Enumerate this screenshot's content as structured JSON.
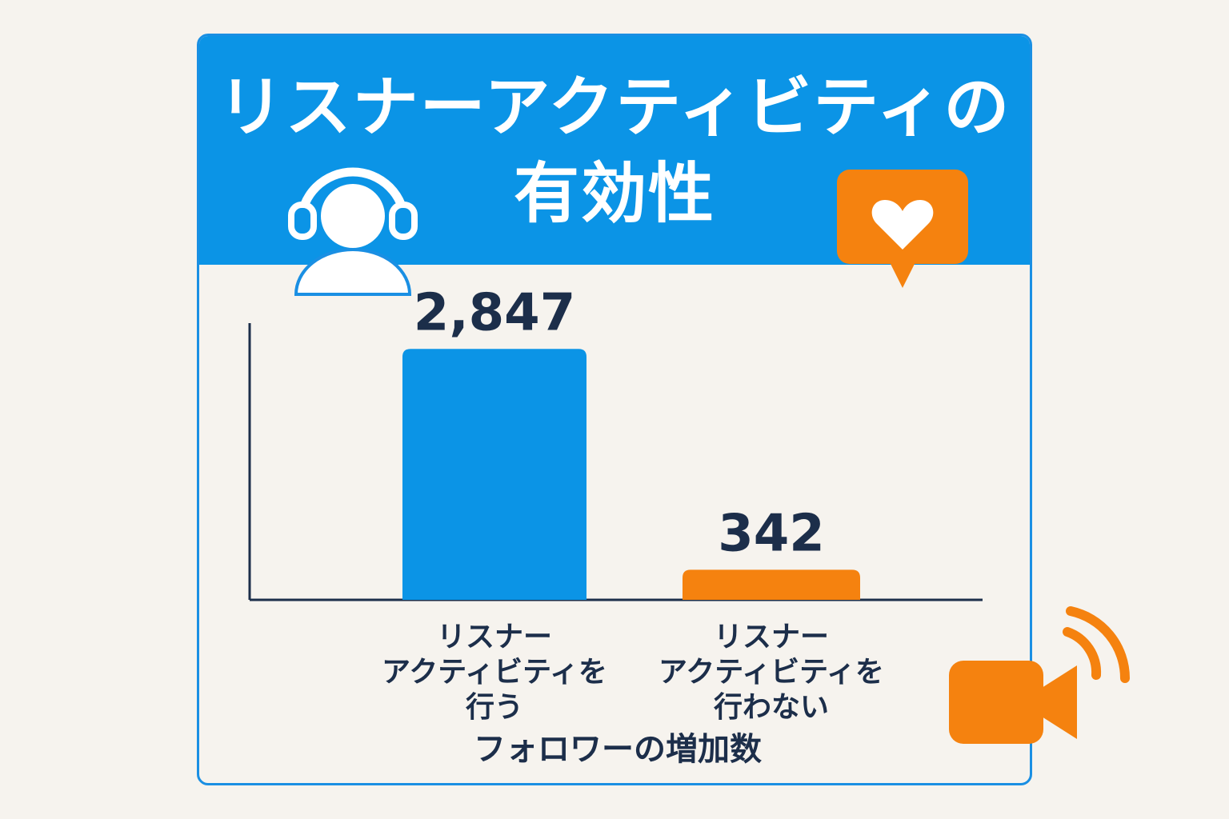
{
  "title_lines": [
    "リスナーアクティビティの",
    "有効性"
  ],
  "colors": {
    "header": "#0b94e6",
    "bar_primary": "#0b94e6",
    "bar_secondary": "#f5820f",
    "axis": "#1c2e4a",
    "text_dark": "#1c2e4a",
    "icon_orange": "#f5820f"
  },
  "icons": [
    "headphones-listener-icon",
    "heart-speech-bubble-icon",
    "video-camera-broadcast-icon"
  ],
  "chart_data": {
    "type": "bar",
    "title": "リスナーアクティビティの有効性",
    "xlabel": "フォロワーの増加数",
    "ylabel": "",
    "categories": [
      [
        "リスナー",
        "アクティビティを",
        "行う"
      ],
      [
        "リスナー",
        "アクティビティを",
        "行わない"
      ]
    ],
    "values": [
      2847,
      342
    ],
    "value_labels": [
      "2,847",
      "342"
    ],
    "ylim": [
      0,
      3140
    ],
    "grid": false
  }
}
